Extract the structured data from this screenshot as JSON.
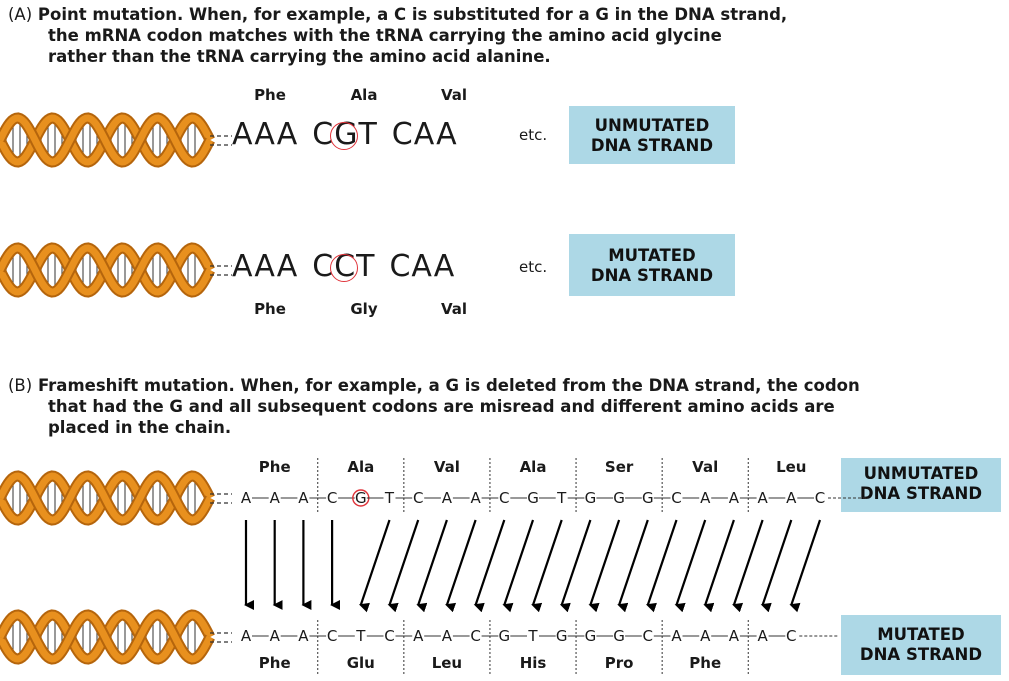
{
  "section_a": {
    "tag": "(A)",
    "line1": "Point mutation. When, for example, a C is substituted for a G in the DNA strand,",
    "line2": "the mRNA codon matches with the tRNA carrying the amino acid glycine",
    "line3": "rather than the tRNA carrying the amino acid alanine.",
    "unmutated": {
      "amino_acids": [
        "Phe",
        "Ala",
        "Val"
      ],
      "codon1": "AAA",
      "codon2_a": "C",
      "codon2_b": "G",
      "codon2_c": "T",
      "codon3": "CAA",
      "etc": "etc.",
      "box_line1": "UNMUTATED",
      "box_line2": "DNA STRAND"
    },
    "mutated": {
      "amino_acids": [
        "Phe",
        "Gly",
        "Val"
      ],
      "codon1": "AAA",
      "codon2_a": "C",
      "codon2_b": "C",
      "codon2_c": "T",
      "codon3": "CAA",
      "etc": "etc.",
      "box_line1": "MUTATED",
      "box_line2": "DNA STRAND"
    }
  },
  "section_b": {
    "tag": "(B)",
    "line1": "Frameshift mutation. When, for example, a G is deleted from the DNA strand, the codon",
    "line2": "that had the G and all subsequent codons are misread and different amino acids are",
    "line3": "placed in the chain.",
    "unmutated": {
      "amino_acids": [
        "Phe",
        "Ala",
        "Val",
        "Ala",
        "Ser",
        "Val",
        "Leu"
      ],
      "bases": [
        "A",
        "A",
        "A",
        "C",
        "G",
        "T",
        "C",
        "A",
        "A",
        "C",
        "G",
        "T",
        "G",
        "G",
        "G",
        "C",
        "A",
        "A",
        "A",
        "A",
        "C"
      ],
      "box_line1": "UNMUTATED",
      "box_line2": "DNA STRAND"
    },
    "mutated": {
      "amino_acids": [
        "Phe",
        "Glu",
        "Leu",
        "His",
        "Pro",
        "Phe"
      ],
      "bases": [
        "A",
        "A",
        "A",
        "C",
        "T",
        "C",
        "A",
        "A",
        "C",
        "G",
        "T",
        "G",
        "G",
        "G",
        "C",
        "A",
        "A",
        "A",
        "A",
        "C"
      ],
      "box_line1": "MUTATED",
      "box_line2": "DNA STRAND"
    }
  },
  "colors": {
    "helix_orange": "#e8901e",
    "helix_dark": "#b5650c",
    "box_bg": "#add8e6",
    "circle": "#e0333a"
  }
}
